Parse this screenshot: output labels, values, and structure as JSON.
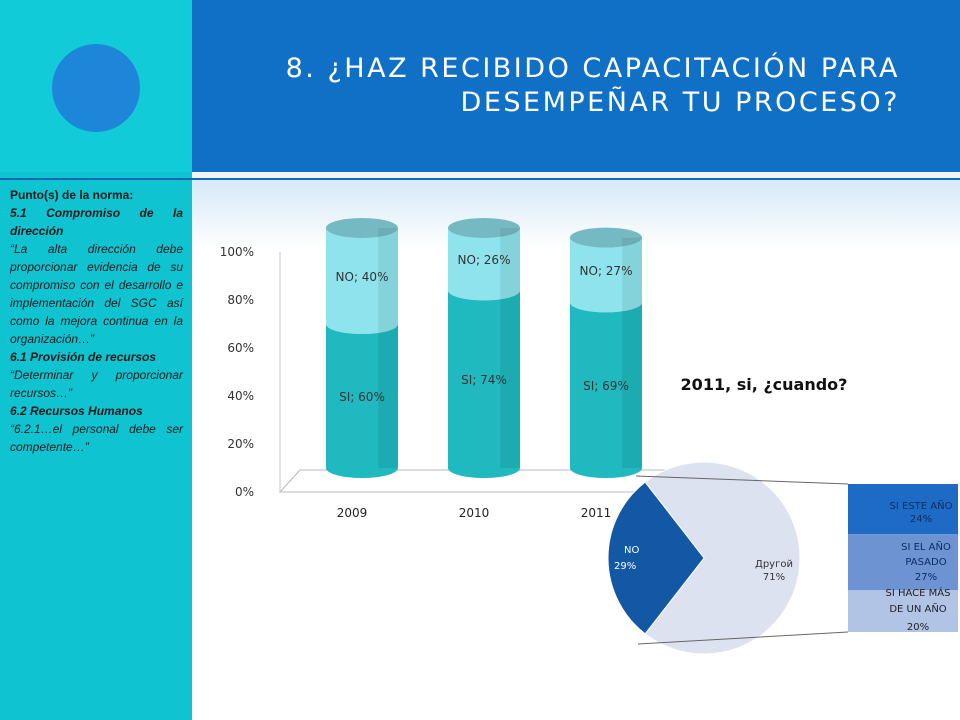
{
  "title": {
    "line1": "8. ¿HAZ RECIBIDO CAPACITACIÓN PARA",
    "line2": "DESEMPEÑAR TU PROCESO?"
  },
  "notes": {
    "heading": "Punto(s) de la norma:",
    "s1_title": "5.1 Compromiso de la dirección",
    "s1_text": "“La alta dirección debe proporcionar evidencia de su compromiso con el desarrollo e implementación del SGC así como la mejora continua en la organización…”",
    "s2_title": "6.1 Provisión de recursos",
    "s2_text": "“Determinar y proporcionar recursos…”",
    "s3_title": "6.2 Recursos Humanos",
    "s3_text": "“6.2.1…el personal debe ser competente…”"
  },
  "colors": {
    "header": "#1070c6",
    "sidebar": "#10c3d1",
    "si": "#1fb9bf",
    "no": "#8fe3ec",
    "pie_no": "#1258a5",
    "pie_otro": "#dde2f1",
    "bar_este": "#1d6bc4",
    "bar_pasado": "#6d93d3",
    "bar_mas": "#b1c4e6"
  },
  "chart_data": [
    {
      "type": "bar",
      "subtype": "stacked-cylinder",
      "categories": [
        "2009",
        "2010",
        "2011"
      ],
      "series": [
        {
          "name": "SI",
          "values": [
            60,
            74,
            69
          ]
        },
        {
          "name": "NO",
          "values": [
            40,
            26,
            27
          ]
        }
      ],
      "data_labels": {
        "SI": [
          "SI; 60%",
          "SI; 74%",
          "SI; 69%"
        ],
        "NO": [
          "NO; 40%",
          "NO; 26%",
          "NO; 27%"
        ]
      },
      "yticks": [
        "0%",
        "20%",
        "40%",
        "60%",
        "80%",
        "100%"
      ],
      "ylim": [
        0,
        100
      ]
    },
    {
      "type": "pie",
      "subtype": "bar-of-pie",
      "title": "2011, si, ¿cuando?",
      "slices": [
        {
          "name": "NO",
          "value": 29,
          "label": "29%"
        },
        {
          "name": "Другой",
          "value": 71,
          "label": "71%"
        }
      ],
      "breakdown": [
        {
          "name": "SI ESTE AÑO",
          "value": 24,
          "label": "24%"
        },
        {
          "name": "SI EL AÑO PASADO",
          "value": 27,
          "label": "27%"
        },
        {
          "name": "SI HACE MÁS DE UN AÑO",
          "value": 20,
          "label": "20%"
        }
      ]
    }
  ]
}
